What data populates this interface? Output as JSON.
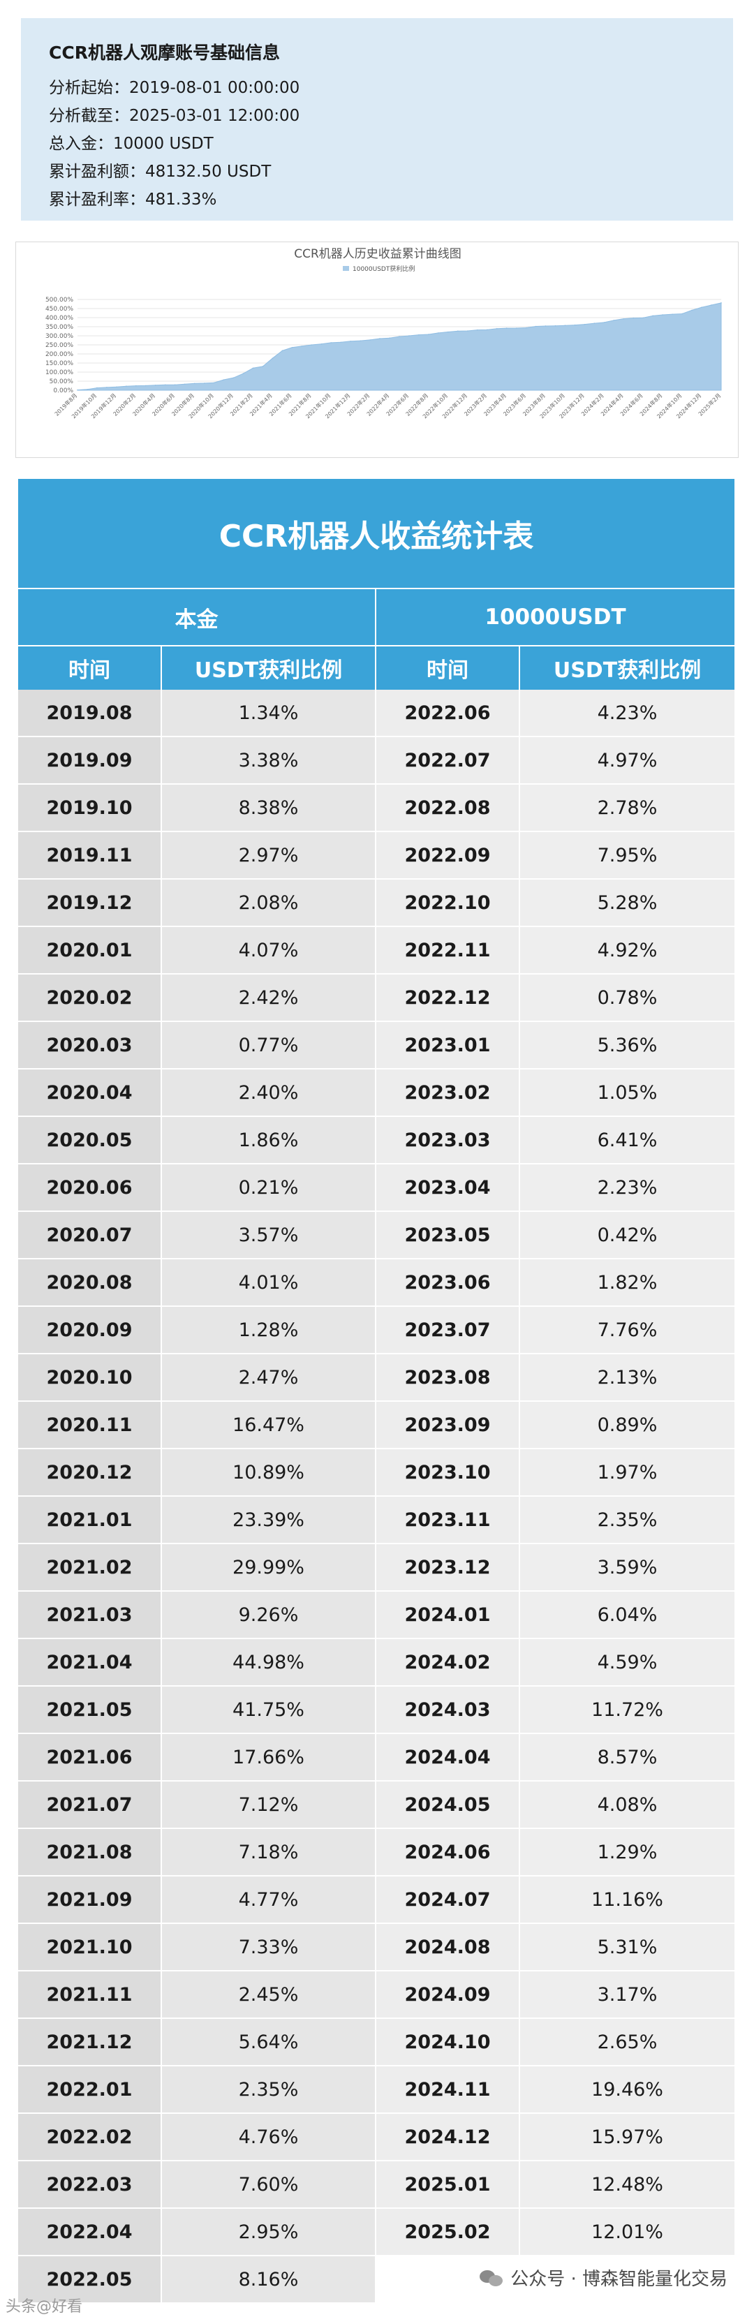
{
  "info": {
    "title": "CCR机器人观摩账号基础信息",
    "lines": [
      "分析起始：2019-08-01 00:00:00",
      "分析截至：2025-03-01 12:00:00",
      "总入金：10000 USDT",
      "累计盈利额：48132.50 USDT",
      "累计盈利率：481.33%"
    ]
  },
  "chart_data": {
    "type": "area",
    "title": "CCR机器人历史收益累计曲线图",
    "legend": "10000USDT获利比例",
    "legend_position": "top-center",
    "y_ticks": [
      "500.00%",
      "450.00%",
      "400.00%",
      "350.00%",
      "300.00%",
      "250.00%",
      "200.00%",
      "150.00%",
      "100.00%",
      "50.00%",
      "0.00%"
    ],
    "ylim": [
      0,
      500
    ],
    "grid": true,
    "x": [
      "2019年8月",
      "2019年9月",
      "2019年10月",
      "2019年11月",
      "2019年12月",
      "2020年1月",
      "2020年2月",
      "2020年3月",
      "2020年4月",
      "2020年5月",
      "2020年6月",
      "2020年7月",
      "2020年8月",
      "2020年9月",
      "2020年10月",
      "2020年11月",
      "2020年12月",
      "2021年1月",
      "2021年2月",
      "2021年3月",
      "2021年4月",
      "2021年5月",
      "2021年6月",
      "2021年7月",
      "2021年8月",
      "2021年9月",
      "2021年10月",
      "2021年11月",
      "2021年12月",
      "2022年1月",
      "2022年2月",
      "2022年3月",
      "2022年4月",
      "2022年5月",
      "2022年6月",
      "2022年7月",
      "2022年8月",
      "2022年9月",
      "2022年10月",
      "2022年11月",
      "2022年12月",
      "2023年1月",
      "2023年2月",
      "2023年3月",
      "2023年4月",
      "2023年5月",
      "2023年6月",
      "2023年7月",
      "2023年8月",
      "2023年9月",
      "2023年10月",
      "2023年11月",
      "2023年12月",
      "2024年1月",
      "2024年2月",
      "2024年3月",
      "2024年4月",
      "2024年5月",
      "2024年6月",
      "2024年7月",
      "2024年8月",
      "2024年9月",
      "2024年10月",
      "2024年11月",
      "2024年12月",
      "2025年1月",
      "2025年2月"
    ],
    "values": [
      1.34,
      4.72,
      13.1,
      16.07,
      18.15,
      22.22,
      24.64,
      25.41,
      27.81,
      29.67,
      29.88,
      33.45,
      37.46,
      38.74,
      41.21,
      57.68,
      68.57,
      91.96,
      121.95,
      131.21,
      176.19,
      217.94,
      235.6,
      242.72,
      249.9,
      254.67,
      262.0,
      264.45,
      270.09,
      272.44,
      277.2,
      284.8,
      287.75,
      295.91,
      300.14,
      305.11,
      307.89,
      315.84,
      321.12,
      326.04,
      326.82,
      332.18,
      333.23,
      339.64,
      341.87,
      342.29,
      344.11,
      351.87,
      354.0,
      354.89,
      356.86,
      359.21,
      362.8,
      368.84,
      373.43,
      385.15,
      393.72,
      397.8,
      399.09,
      410.25,
      415.56,
      418.73,
      421.38,
      440.84,
      456.81,
      469.29,
      481.3
    ]
  },
  "table": {
    "title": "CCR机器人收益统计表",
    "principal_label": "本金",
    "principal_value": "10000USDT",
    "col_time": "时间",
    "col_ratio": "USDT获利比例",
    "left_rows": [
      [
        "2019.08",
        "1.34%"
      ],
      [
        "2019.09",
        "3.38%"
      ],
      [
        "2019.10",
        "8.38%"
      ],
      [
        "2019.11",
        "2.97%"
      ],
      [
        "2019.12",
        "2.08%"
      ],
      [
        "2020.01",
        "4.07%"
      ],
      [
        "2020.02",
        "2.42%"
      ],
      [
        "2020.03",
        "0.77%"
      ],
      [
        "2020.04",
        "2.40%"
      ],
      [
        "2020.05",
        "1.86%"
      ],
      [
        "2020.06",
        "0.21%"
      ],
      [
        "2020.07",
        "3.57%"
      ],
      [
        "2020.08",
        "4.01%"
      ],
      [
        "2020.09",
        "1.28%"
      ],
      [
        "2020.10",
        "2.47%"
      ],
      [
        "2020.11",
        "16.47%"
      ],
      [
        "2020.12",
        "10.89%"
      ],
      [
        "2021.01",
        "23.39%"
      ],
      [
        "2021.02",
        "29.99%"
      ],
      [
        "2021.03",
        "9.26%"
      ],
      [
        "2021.04",
        "44.98%"
      ],
      [
        "2021.05",
        "41.75%"
      ],
      [
        "2021.06",
        "17.66%"
      ],
      [
        "2021.07",
        "7.12%"
      ],
      [
        "2021.08",
        "7.18%"
      ],
      [
        "2021.09",
        "4.77%"
      ],
      [
        "2021.10",
        "7.33%"
      ],
      [
        "2021.11",
        "2.45%"
      ],
      [
        "2021.12",
        "5.64%"
      ],
      [
        "2022.01",
        "2.35%"
      ],
      [
        "2022.02",
        "4.76%"
      ],
      [
        "2022.03",
        "7.60%"
      ],
      [
        "2022.04",
        "2.95%"
      ],
      [
        "2022.05",
        "8.16%"
      ]
    ],
    "right_rows": [
      [
        "2022.06",
        "4.23%"
      ],
      [
        "2022.07",
        "4.97%"
      ],
      [
        "2022.08",
        "2.78%"
      ],
      [
        "2022.09",
        "7.95%"
      ],
      [
        "2022.10",
        "5.28%"
      ],
      [
        "2022.11",
        "4.92%"
      ],
      [
        "2022.12",
        "0.78%"
      ],
      [
        "2023.01",
        "5.36%"
      ],
      [
        "2023.02",
        "1.05%"
      ],
      [
        "2023.03",
        "6.41%"
      ],
      [
        "2023.04",
        "2.23%"
      ],
      [
        "2023.05",
        "0.42%"
      ],
      [
        "2023.06",
        "1.82%"
      ],
      [
        "2023.07",
        "7.76%"
      ],
      [
        "2023.08",
        "2.13%"
      ],
      [
        "2023.09",
        "0.89%"
      ],
      [
        "2023.10",
        "1.97%"
      ],
      [
        "2023.11",
        "2.35%"
      ],
      [
        "2023.12",
        "3.59%"
      ],
      [
        "2024.01",
        "6.04%"
      ],
      [
        "2024.02",
        "4.59%"
      ],
      [
        "2024.03",
        "11.72%"
      ],
      [
        "2024.04",
        "8.57%"
      ],
      [
        "2024.05",
        "4.08%"
      ],
      [
        "2024.06",
        "1.29%"
      ],
      [
        "2024.07",
        "11.16%"
      ],
      [
        "2024.08",
        "5.31%"
      ],
      [
        "2024.09",
        "3.17%"
      ],
      [
        "2024.10",
        "2.65%"
      ],
      [
        "2024.11",
        "19.46%"
      ],
      [
        "2024.12",
        "15.97%"
      ],
      [
        "2025.01",
        "12.48%"
      ],
      [
        "2025.02",
        "12.01%"
      ]
    ]
  },
  "footer": {
    "icon": "wechat-icon",
    "text": "公众号 · 博森智能量化交易",
    "left_text": "头条@好看"
  }
}
